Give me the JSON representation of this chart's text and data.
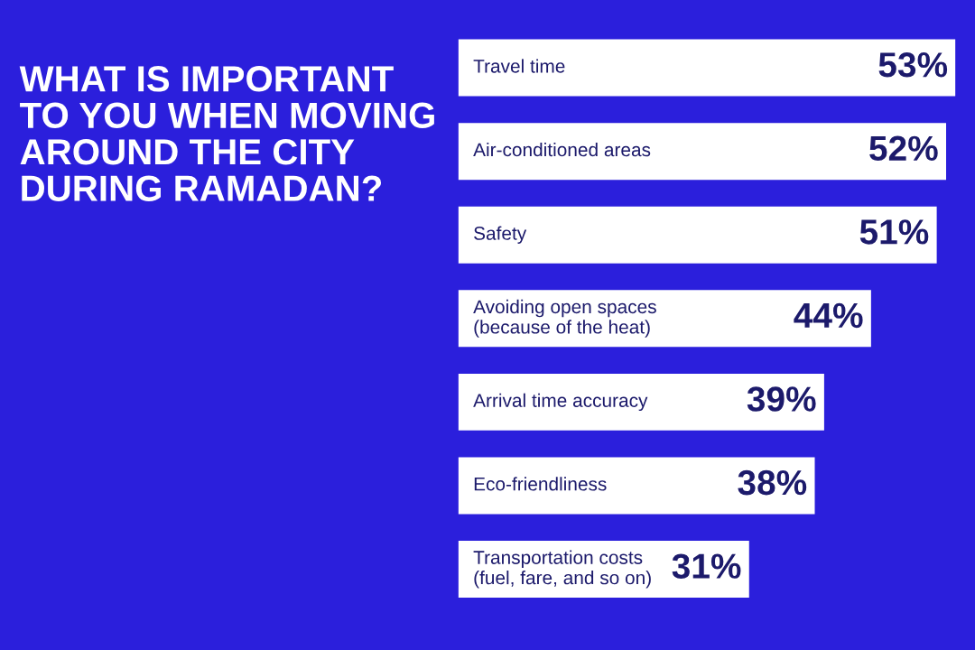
{
  "chart_data": {
    "type": "bar",
    "orientation": "horizontal",
    "title": "WHAT IS IMPORTANT\nTO YOU WHEN MOVING\nAROUND THE CITY\nDURING RAMADAN?",
    "categories": [
      "Travel time",
      "Air-conditioned areas",
      "Safety",
      "Avoiding open spaces\n(because of the heat)",
      "Arrival time accuracy",
      "Eco-friendliness",
      "Transportation costs\n(fuel, fare, and so on)"
    ],
    "values": [
      53,
      52,
      51,
      44,
      39,
      38,
      31
    ],
    "value_labels": [
      "53%",
      "52%",
      "51%",
      "44%",
      "39%",
      "38%",
      "31%"
    ],
    "color": "#ffffff",
    "tick_labels": false
  }
}
